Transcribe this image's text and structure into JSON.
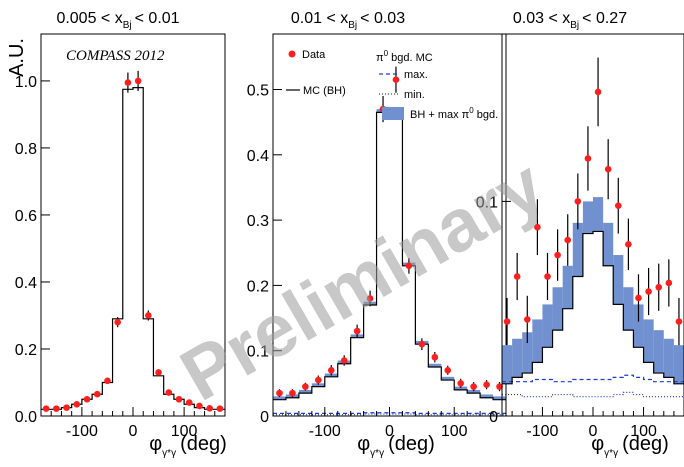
{
  "chart_data": [
    {
      "type": "line",
      "title_pre": "0.005 < x",
      "title_sub": "Bj",
      "title_post": "< 0.01",
      "ylabel": "A.U.",
      "xlabel_main": "φ",
      "xlabel_sub": "γ*γ",
      "xlabel_unit": "(deg)",
      "annotation": "COMPASS 2012",
      "xlim": [
        -180,
        180
      ],
      "ylim": [
        0,
        1.14
      ],
      "xticks": [
        "-100",
        "0",
        "100"
      ],
      "xtick_values": [
        -100,
        0,
        100
      ],
      "yticks": [
        "0.0",
        "0.2",
        "0.4",
        "0.6",
        "0.8",
        "1.0"
      ],
      "ytick_values": [
        0.0,
        0.2,
        0.4,
        0.6,
        0.8,
        1.0
      ],
      "grid": false,
      "data_x": [
        -170,
        -150,
        -130,
        -110,
        -90,
        -70,
        -50,
        -30,
        -10,
        10,
        30,
        50,
        70,
        90,
        110,
        130,
        150,
        170
      ],
      "data_y": [
        0.022,
        0.022,
        0.025,
        0.035,
        0.05,
        0.065,
        0.105,
        0.28,
        0.995,
        1.0,
        0.3,
        0.13,
        0.07,
        0.05,
        0.04,
        0.03,
        0.023,
        0.022
      ],
      "data_err": [
        0.005,
        0.005,
        0.005,
        0.005,
        0.006,
        0.007,
        0.009,
        0.015,
        0.03,
        0.03,
        0.015,
        0.009,
        0.007,
        0.006,
        0.005,
        0.005,
        0.005,
        0.005
      ],
      "mc_edges": [
        -180,
        -160,
        -140,
        -120,
        -100,
        -80,
        -60,
        -40,
        -20,
        0,
        20,
        40,
        60,
        80,
        100,
        120,
        140,
        160,
        180
      ],
      "mc_values": [
        0.02,
        0.02,
        0.025,
        0.035,
        0.05,
        0.065,
        0.1,
        0.29,
        0.975,
        0.98,
        0.29,
        0.12,
        0.065,
        0.05,
        0.035,
        0.025,
        0.02,
        0.02
      ]
    },
    {
      "type": "line",
      "title_pre": "0.01 < x",
      "title_sub": "Bj",
      "title_post": "< 0.03",
      "xlabel_main": "φ",
      "xlabel_sub": "γ*γ",
      "xlabel_unit": "(deg)",
      "xlim": [
        -180,
        180
      ],
      "ylim": [
        0,
        0.585
      ],
      "xticks": [
        "-100",
        "0",
        "100"
      ],
      "xtick_values": [
        -100,
        0,
        100
      ],
      "yticks": [
        "0",
        "0.1",
        "0.2",
        "0.3",
        "0.4",
        "0.5"
      ],
      "ytick_values": [
        0,
        0.1,
        0.2,
        0.3,
        0.4,
        0.5
      ],
      "grid": false,
      "legend": {
        "data": "Data",
        "mc_bh": "MC (BH)",
        "bgd_pre": "π",
        "bgd_sup": "0",
        "bgd_post": " bgd. MC",
        "max": "max.",
        "min": "min.",
        "band": "BH + max π",
        "band_sup": "0",
        "band_post": " bgd."
      },
      "data_x": [
        -170,
        -150,
        -130,
        -110,
        -90,
        -70,
        -50,
        -30,
        -10,
        10,
        30,
        50,
        70,
        90,
        110,
        130,
        150,
        170
      ],
      "data_y": [
        0.035,
        0.035,
        0.045,
        0.055,
        0.07,
        0.085,
        0.13,
        0.18,
        0.47,
        0.515,
        0.23,
        0.11,
        0.09,
        0.07,
        0.05,
        0.045,
        0.048,
        0.045
      ],
      "data_err": [
        0.006,
        0.006,
        0.006,
        0.007,
        0.008,
        0.008,
        0.01,
        0.012,
        0.02,
        0.02,
        0.012,
        0.009,
        0.008,
        0.007,
        0.007,
        0.007,
        0.007,
        0.007
      ],
      "mc_edges": [
        -180,
        -160,
        -140,
        -120,
        -100,
        -80,
        -60,
        -40,
        -20,
        0,
        20,
        40,
        60,
        80,
        100,
        120,
        140,
        160,
        180
      ],
      "mc_values": [
        0.025,
        0.028,
        0.035,
        0.045,
        0.06,
        0.08,
        0.12,
        0.17,
        0.465,
        0.46,
        0.23,
        0.11,
        0.075,
        0.055,
        0.04,
        0.035,
        0.028,
        0.025
      ],
      "band_values": [
        0.03,
        0.033,
        0.04,
        0.05,
        0.065,
        0.085,
        0.125,
        0.175,
        0.47,
        0.465,
        0.235,
        0.115,
        0.08,
        0.06,
        0.045,
        0.04,
        0.033,
        0.03
      ],
      "max_values": [
        0.004,
        0.004,
        0.004,
        0.004,
        0.004,
        0.004,
        0.004,
        0.005,
        0.005,
        0.005,
        0.005,
        0.004,
        0.004,
        0.004,
        0.004,
        0.004,
        0.004,
        0.004
      ],
      "min_values": [
        0.002,
        0.002,
        0.002,
        0.002,
        0.002,
        0.002,
        0.002,
        0.003,
        0.003,
        0.003,
        0.003,
        0.002,
        0.002,
        0.002,
        0.002,
        0.002,
        0.002,
        0.002
      ]
    },
    {
      "type": "line",
      "title_pre": "0.03 < x",
      "title_sub": "Bj",
      "title_post": "< 0.27",
      "xlabel_main": "φ",
      "xlabel_sub": "γ*γ",
      "xlabel_unit": "(deg)",
      "xlim": [
        -180,
        180
      ],
      "ylim": [
        0,
        0.178
      ],
      "xticks": [
        "-100",
        "0",
        "100"
      ],
      "xtick_values": [
        -100,
        0,
        100
      ],
      "yticks": [
        "0",
        "0.1"
      ],
      "ytick_values": [
        0,
        0.1
      ],
      "grid": false,
      "data_x": [
        -170,
        -150,
        -130,
        -110,
        -90,
        -70,
        -50,
        -30,
        -10,
        10,
        30,
        50,
        70,
        90,
        110,
        130,
        150,
        170
      ],
      "data_y": [
        0.044,
        0.065,
        0.045,
        0.088,
        0.065,
        0.075,
        0.082,
        0.1,
        0.12,
        0.151,
        0.115,
        0.098,
        0.08,
        0.055,
        0.058,
        0.06,
        0.062,
        0.044
      ],
      "data_err": [
        0.011,
        0.011,
        0.011,
        0.013,
        0.011,
        0.012,
        0.012,
        0.013,
        0.015,
        0.016,
        0.014,
        0.013,
        0.012,
        0.011,
        0.011,
        0.011,
        0.011,
        0.011
      ],
      "mc_edges": [
        -180,
        -160,
        -140,
        -120,
        -100,
        -80,
        -60,
        -40,
        -20,
        0,
        20,
        40,
        60,
        80,
        100,
        120,
        140,
        160,
        180
      ],
      "mc_values": [
        0.015,
        0.018,
        0.02,
        0.025,
        0.032,
        0.04,
        0.05,
        0.065,
        0.085,
        0.086,
        0.07,
        0.052,
        0.04,
        0.032,
        0.025,
        0.02,
        0.018,
        0.015
      ],
      "band_values": [
        0.033,
        0.036,
        0.039,
        0.045,
        0.052,
        0.06,
        0.07,
        0.09,
        0.1,
        0.102,
        0.09,
        0.075,
        0.06,
        0.052,
        0.045,
        0.04,
        0.036,
        0.033
      ],
      "max_values": [
        0.016,
        0.016,
        0.016,
        0.017,
        0.017,
        0.016,
        0.016,
        0.017,
        0.017,
        0.017,
        0.017,
        0.018,
        0.019,
        0.018,
        0.017,
        0.016,
        0.016,
        0.016
      ],
      "min_values": [
        0.01,
        0.01,
        0.009,
        0.009,
        0.009,
        0.01,
        0.01,
        0.009,
        0.009,
        0.009,
        0.009,
        0.01,
        0.011,
        0.01,
        0.009,
        0.009,
        0.009,
        0.009
      ]
    }
  ],
  "watermark": "Preliminary",
  "colors": {
    "data": "#ff1f1f",
    "mc": "#000000",
    "band": "#7090d0",
    "max": "#1a3cc8",
    "min": "#1a3cc8",
    "watermark": "#9a9a9a"
  }
}
